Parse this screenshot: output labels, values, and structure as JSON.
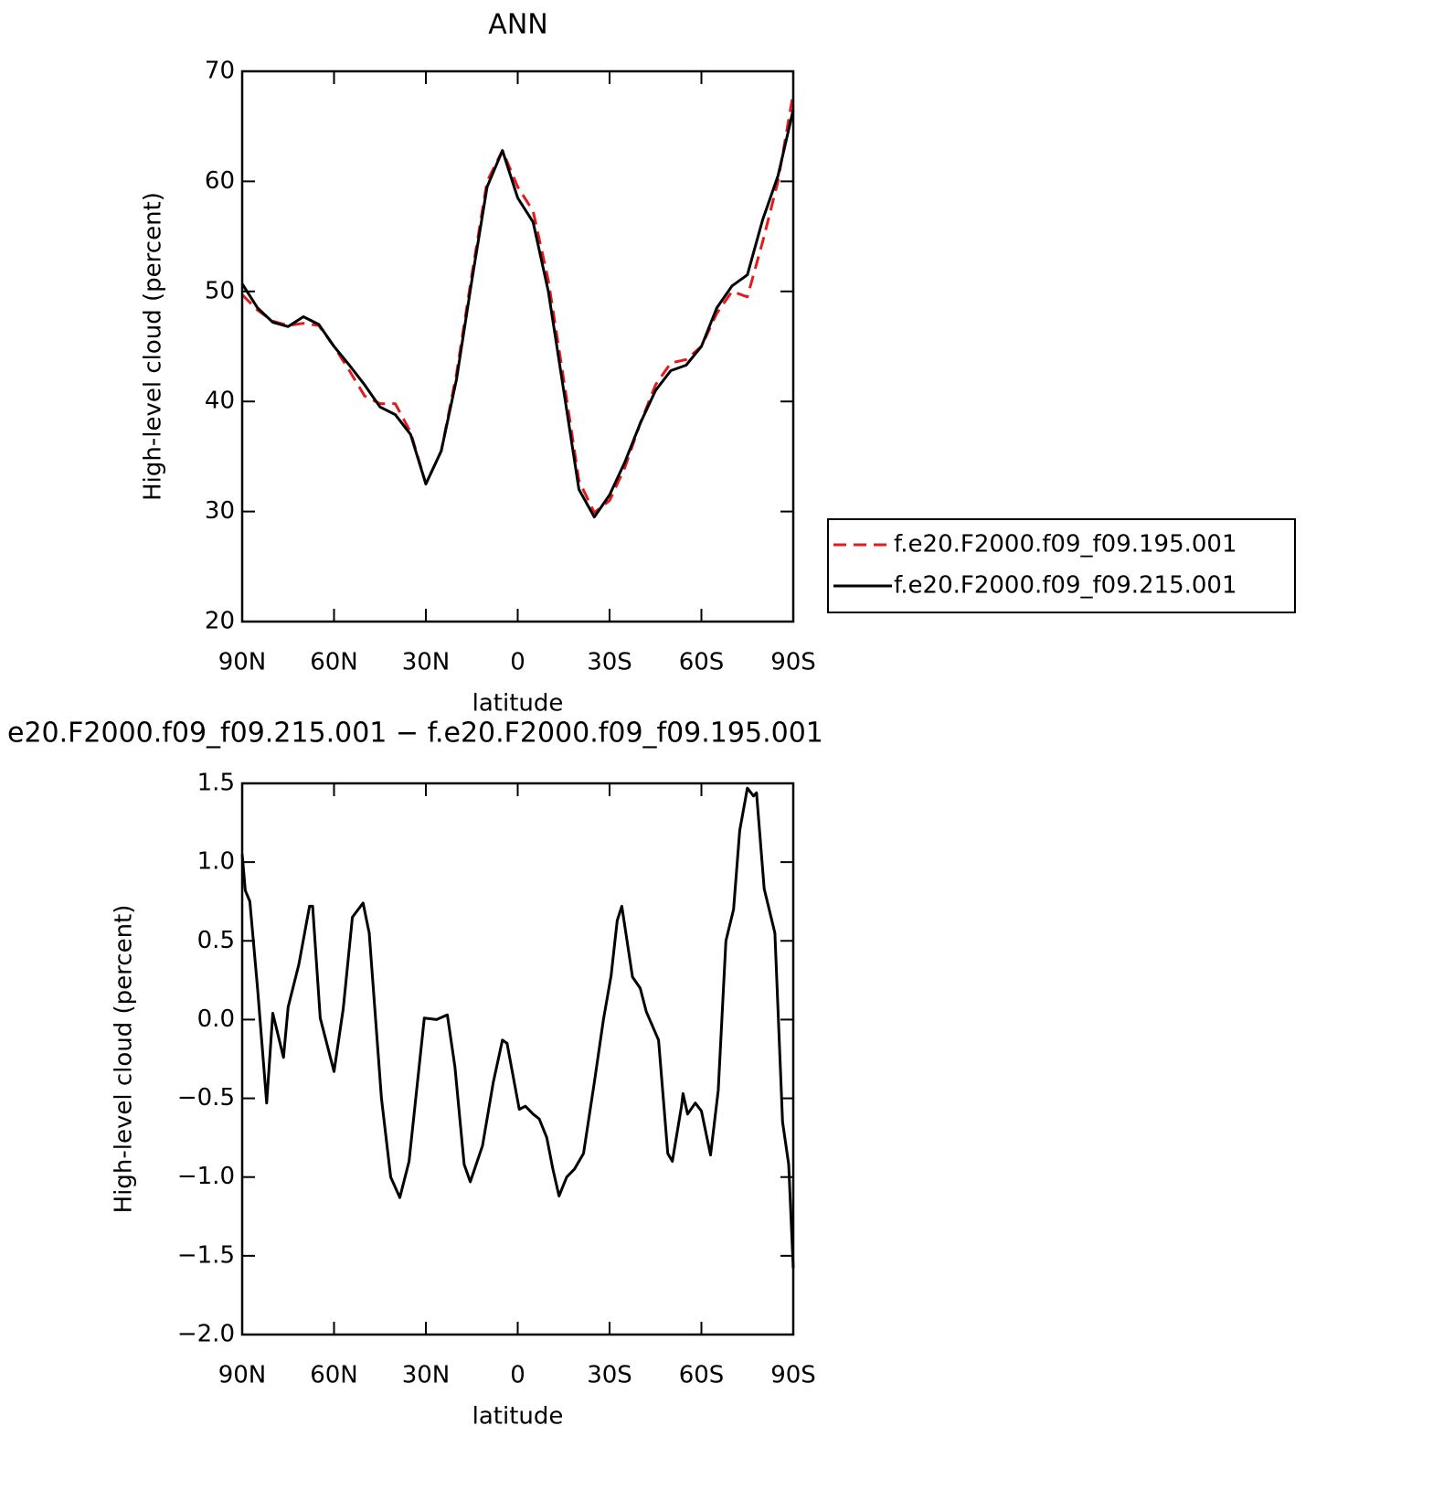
{
  "chart_data": [
    {
      "type": "line",
      "title": "ANN",
      "xlabel": "latitude",
      "ylabel": "High-level cloud (percent)",
      "x": [
        90,
        85,
        80,
        75,
        70,
        65,
        60,
        55,
        50,
        45,
        40,
        35,
        30,
        25,
        20,
        15,
        10,
        5,
        0,
        -5,
        -10,
        -15,
        -20,
        -25,
        -30,
        -35,
        -40,
        -45,
        -50,
        -55,
        -60,
        -65,
        -70,
        -75,
        -80,
        -85,
        -90
      ],
      "series": [
        {
          "name": "f.e20.F2000.f09_f09.195.001",
          "color": "#e41a1c",
          "dashed": true,
          "values": [
            49.7,
            48.3,
            47.3,
            46.9,
            47.1,
            46.9,
            45.0,
            42.8,
            40.5,
            39.8,
            39.8,
            37.2,
            32.5,
            35.5,
            42.5,
            51.5,
            60,
            62.8,
            59.5,
            57.3,
            51,
            42,
            32.8,
            29.9,
            31,
            34,
            38,
            41.5,
            43.5,
            43.8,
            45,
            48,
            50,
            49.5,
            54.5,
            60,
            68
          ]
        },
        {
          "name": "f.e20.F2000.f09_f09.215.001",
          "color": "#000000",
          "dashed": false,
          "values": [
            50.7,
            48.5,
            47.2,
            46.8,
            47.7,
            47.0,
            45.0,
            43.3,
            41.5,
            39.5,
            38.8,
            37.0,
            32.5,
            35.5,
            42,
            51,
            59.5,
            62.8,
            58.5,
            56.3,
            50,
            41,
            32,
            29.5,
            31.5,
            34.5,
            38,
            41,
            42.8,
            43.3,
            45,
            48.5,
            50.5,
            51.5,
            56.5,
            60.5,
            66.5
          ]
        }
      ],
      "xlim": [
        90,
        -90
      ],
      "xticks": [
        {
          "value": 90,
          "label": "90N"
        },
        {
          "value": 60,
          "label": "60N"
        },
        {
          "value": 30,
          "label": "30N"
        },
        0,
        {
          "value": -30,
          "label": "30S"
        },
        {
          "value": -60,
          "label": "60S"
        },
        {
          "value": -90,
          "label": "90S"
        }
      ],
      "ylim": [
        20,
        70
      ],
      "yticks": [
        20,
        30,
        40,
        50,
        60,
        70
      ],
      "grid": false,
      "legend": "right"
    },
    {
      "type": "line",
      "title": "e20.F2000.f09_f09.215.001 − f.e20.F2000.f09_f09.195.001",
      "xlabel": "latitude",
      "ylabel": "High-level cloud (percent)",
      "x": [
        90,
        89,
        87.5,
        85,
        82,
        80,
        76.5,
        75,
        71.5,
        68,
        67,
        64.5,
        60,
        57,
        54,
        50.5,
        48.5,
        44.5,
        41.5,
        38.5,
        35.5,
        30.5,
        26.5,
        23,
        20.5,
        17.5,
        15.5,
        11.5,
        8,
        5,
        3.5,
        -0.5,
        -2.5,
        -5,
        -7,
        -9.5,
        -11.5,
        -13.5,
        -16,
        -18.5,
        -21.5,
        -25,
        -28,
        -30.5,
        -32.5,
        -34,
        -37.5,
        -40,
        -42,
        -46,
        -49,
        -50.5,
        -53.5,
        -54,
        -55.5,
        -58,
        -60,
        -63,
        -65.5,
        -68,
        -70.5,
        -72.5,
        -75,
        -77,
        -78,
        -80.5,
        -84,
        -86.5,
        -88.5,
        -90
      ],
      "values": [
        1.05,
        0.82,
        0.75,
        0.2,
        -0.53,
        0.04,
        -0.24,
        0.08,
        0.35,
        0.72,
        0.72,
        0.01,
        -0.33,
        0.07,
        0.65,
        0.74,
        0.55,
        -0.5,
        -1.0,
        -1.13,
        -0.9,
        0.01,
        0.0,
        0.03,
        -0.3,
        -0.92,
        -1.03,
        -0.8,
        -0.4,
        -0.13,
        -0.15,
        -0.57,
        -0.55,
        -0.6,
        -0.63,
        -0.75,
        -0.95,
        -1.12,
        -1.0,
        -0.95,
        -0.85,
        -0.4,
        0.0,
        0.28,
        0.63,
        0.72,
        0.27,
        0.2,
        0.05,
        -0.13,
        -0.85,
        -0.9,
        -0.55,
        -0.47,
        -0.6,
        -0.53,
        -0.58,
        -0.86,
        -0.45,
        0.5,
        0.7,
        1.2,
        1.47,
        1.42,
        1.44,
        0.83,
        0.55,
        -0.65,
        -0.92,
        -1.58
      ],
      "color": "#000000",
      "xlim": [
        90,
        -90
      ],
      "xticks": [
        {
          "value": 90,
          "label": "90N"
        },
        {
          "value": 60,
          "label": "60N"
        },
        {
          "value": 30,
          "label": "30N"
        },
        0,
        {
          "value": -30,
          "label": "30S"
        },
        {
          "value": -60,
          "label": "60S"
        },
        {
          "value": -90,
          "label": "90S"
        }
      ],
      "ylim": [
        -2,
        1.5
      ],
      "yticks": [
        {
          "value": -2,
          "label": "−2.0"
        },
        {
          "value": -1.5,
          "label": "−1.5"
        },
        {
          "value": -1,
          "label": "−1.0"
        },
        {
          "value": -0.5,
          "label": "−0.5"
        },
        {
          "value": 0,
          "label": "0.0"
        },
        0.5,
        {
          "value": 1,
          "label": "1.0"
        },
        1.5
      ],
      "grid": false
    }
  ]
}
